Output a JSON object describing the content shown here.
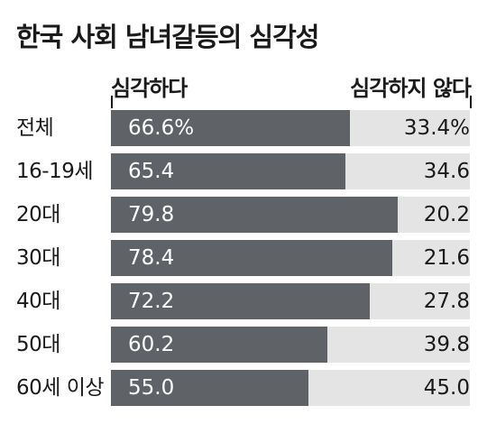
{
  "chart_data": {
    "type": "bar",
    "stacked": true,
    "orientation": "horizontal",
    "title": "한국 사회 남녀갈등의 심각성",
    "categories": [
      "전체",
      "16-19세",
      "20대",
      "30대",
      "40대",
      "50대",
      "60세 이상"
    ],
    "series": [
      {
        "name": "심각하다",
        "color": "#5f6266",
        "values": [
          66.6,
          65.4,
          79.8,
          78.4,
          72.2,
          60.2,
          55.0
        ],
        "labels": [
          "66.6%",
          "65.4",
          "79.8",
          "78.4",
          "72.2",
          "60.2",
          "55.0"
        ]
      },
      {
        "name": "심각하지 않다",
        "color": "#e4e4e4",
        "values": [
          33.4,
          34.6,
          20.2,
          21.6,
          27.8,
          39.8,
          45.0
        ],
        "labels": [
          "33.4%",
          "34.6",
          "20.2",
          "21.6",
          "27.8",
          "39.8",
          "45.0"
        ]
      }
    ],
    "xlim": [
      0,
      100
    ]
  }
}
